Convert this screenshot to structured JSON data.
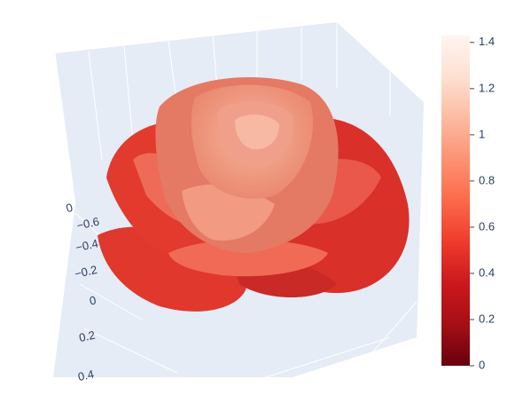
{
  "chart_data": {
    "type": "surface",
    "colorscale": [
      "#67000d",
      "#a50f15",
      "#cb181d",
      "#ef3b2c",
      "#fb6a4a",
      "#fc9272",
      "#fcbba1",
      "#fee0d2",
      "#fff5f0"
    ],
    "clim": [
      0,
      1.43
    ],
    "cticks": [
      0,
      0.2,
      0.4,
      0.6,
      0.8,
      1,
      1.2,
      1.4
    ],
    "zticks": [
      0
    ],
    "yticks": [
      {
        "value": -0.6,
        "label": "−0.6"
      },
      {
        "value": -0.4,
        "label": "−0.4"
      },
      {
        "value": -0.2,
        "label": "−0.2"
      },
      0,
      0.2,
      0.4
    ]
  }
}
